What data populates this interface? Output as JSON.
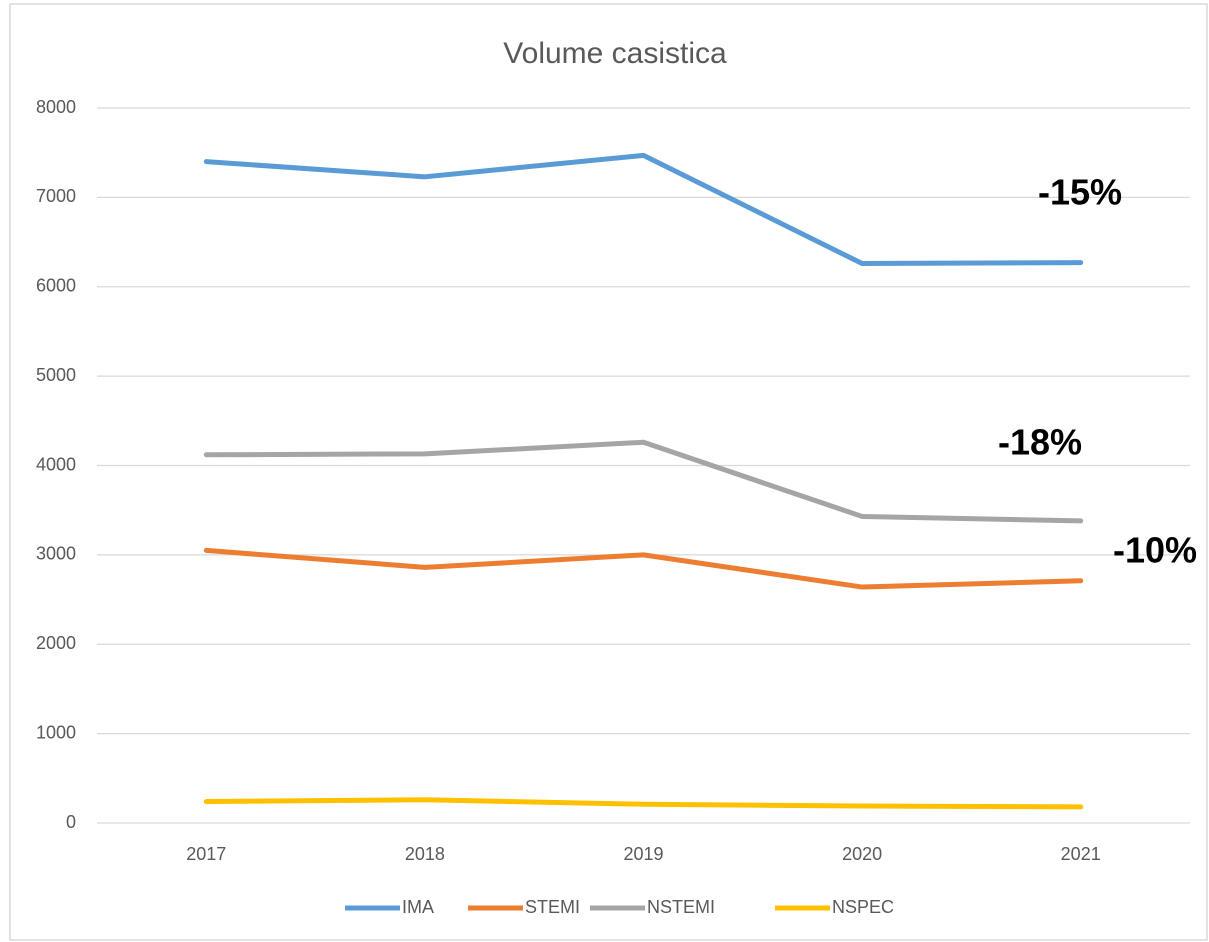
{
  "chart_data": {
    "type": "line",
    "title": "Volume casistica",
    "categories": [
      "2017",
      "2018",
      "2019",
      "2020",
      "2021"
    ],
    "series": [
      {
        "name": "IMA",
        "color": "#5b9bd5",
        "values": [
          7400,
          7230,
          7470,
          6260,
          6270
        ]
      },
      {
        "name": "STEMI",
        "color": "#ed7d31",
        "values": [
          3050,
          2860,
          3000,
          2640,
          2710
        ]
      },
      {
        "name": "NSTEMI",
        "color": "#a5a5a5",
        "values": [
          4120,
          4130,
          4260,
          3430,
          3380
        ]
      },
      {
        "name": "NSPEC",
        "color": "#ffc000",
        "values": [
          240,
          260,
          210,
          190,
          180
        ]
      }
    ],
    "ylim": [
      0,
      8000
    ],
    "yticks": [
      0,
      1000,
      2000,
      3000,
      4000,
      5000,
      6000,
      7000,
      8000
    ],
    "grid": true,
    "legend": "bottom",
    "annotations": [
      "-15%",
      "-18%",
      "-10%"
    ]
  }
}
